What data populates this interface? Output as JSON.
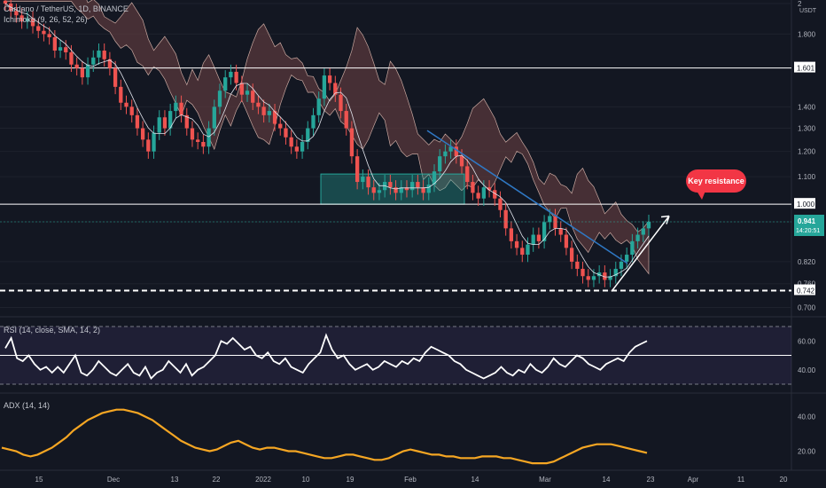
{
  "legend": {
    "symbol": "Cardano / TetherUS, 1D, BINANCE",
    "ichimoku": "Ichimoku (9, 26, 52, 26)",
    "rsi": "RSI (14, close, SMA, 14, 2)",
    "adx": "ADX (14, 14)"
  },
  "currency": "USDT",
  "annotation": {
    "key_resistance": "Key resistance"
  },
  "price_badge": {
    "price": "0.941",
    "countdown": "14:20:51"
  },
  "colors": {
    "background": "#131722",
    "up": "#26a69a",
    "down": "#ef5350",
    "cloud": "#5d3a3d",
    "adx": "#f5a623",
    "trendline": "#2f78c4",
    "annotation": "#f23645",
    "zone": "#26a69a"
  },
  "chart_data": [
    {
      "type": "candlestick",
      "scale": "log",
      "ylim": [
        0.68,
        2.0
      ],
      "y_ticks": [
        "2",
        "1.800",
        "1.601",
        "1.400",
        "1.300",
        "1.200",
        "1.100",
        "1.000",
        "0.941",
        "0.820",
        "0.760",
        "0.742",
        "0.700"
      ],
      "x_ticks": [
        "15",
        "Dec",
        "13",
        "22",
        "2022",
        "10",
        "19",
        "Feb",
        "14",
        "Mar",
        "14",
        "23",
        "Apr",
        "11",
        "20"
      ],
      "horizontal_levels": [
        1.601,
        1.0,
        0.742
      ],
      "last_price": 0.941,
      "series": [
        {
          "name": "ADAUSDT",
          "values": [
            2.0,
            1.95,
            1.92,
            1.88,
            1.9,
            1.85,
            1.82,
            1.8,
            1.78,
            1.7,
            1.72,
            1.69,
            1.62,
            1.6,
            1.55,
            1.62,
            1.66,
            1.7,
            1.65,
            1.6,
            1.5,
            1.42,
            1.4,
            1.36,
            1.3,
            1.25,
            1.2,
            1.28,
            1.35,
            1.3,
            1.38,
            1.42,
            1.36,
            1.3,
            1.25,
            1.24,
            1.22,
            1.3,
            1.4,
            1.48,
            1.55,
            1.58,
            1.52,
            1.46,
            1.48,
            1.42,
            1.4,
            1.36,
            1.38,
            1.32,
            1.3,
            1.26,
            1.22,
            1.2,
            1.24,
            1.3,
            1.36,
            1.44,
            1.56,
            1.52,
            1.46,
            1.38,
            1.3,
            1.18,
            1.08,
            1.1,
            1.06,
            1.04,
            1.05,
            1.08,
            1.06,
            1.04,
            1.06,
            1.05,
            1.08,
            1.06,
            1.04,
            1.07,
            1.12,
            1.18,
            1.2,
            1.22,
            1.18,
            1.14,
            1.08,
            1.04,
            1.02,
            1.06,
            1.05,
            1.02,
            0.98,
            0.92,
            0.88,
            0.86,
            0.84,
            0.87,
            0.9,
            0.88,
            0.94,
            0.96,
            0.92,
            0.9,
            0.86,
            0.82,
            0.8,
            0.78,
            0.77,
            0.78,
            0.79,
            0.77,
            0.78,
            0.8,
            0.82,
            0.84,
            0.88,
            0.9,
            0.92,
            0.941
          ]
        }
      ]
    },
    {
      "type": "line",
      "title": "RSI (14, close, SMA, 14, 2)",
      "y_ticks": [
        "60.00",
        "40.00"
      ],
      "levels": [
        70,
        50,
        30
      ],
      "series": [
        {
          "name": "RSI",
          "values": [
            55,
            62,
            48,
            46,
            50,
            44,
            40,
            42,
            38,
            42,
            38,
            44,
            50,
            38,
            36,
            40,
            46,
            42,
            38,
            36,
            40,
            44,
            38,
            36,
            42,
            34,
            38,
            40,
            46,
            42,
            38,
            44,
            36,
            40,
            42,
            46,
            50,
            60,
            58,
            62,
            58,
            54,
            56,
            50,
            48,
            52,
            46,
            44,
            48,
            42,
            40,
            38,
            44,
            48,
            52,
            64,
            54,
            48,
            50,
            44,
            40,
            42,
            44,
            40,
            42,
            46,
            44,
            42,
            46,
            44,
            48,
            46,
            52,
            56,
            54,
            52,
            50,
            46,
            44,
            40,
            38,
            36,
            34,
            36,
            38,
            42,
            38,
            36,
            40,
            38,
            44,
            40,
            38,
            42,
            48,
            44,
            42,
            46,
            50,
            48,
            44,
            42,
            40,
            44,
            46,
            48,
            46,
            52,
            56,
            58,
            60
          ]
        }
      ]
    },
    {
      "type": "line",
      "title": "ADX (14, 14)",
      "y_ticks": [
        "40.00",
        "20.00"
      ],
      "series": [
        {
          "name": "ADX",
          "values": [
            22,
            21,
            20,
            18,
            17,
            18,
            20,
            22,
            25,
            28,
            32,
            35,
            38,
            40,
            42,
            43,
            44,
            44,
            43,
            42,
            40,
            38,
            35,
            32,
            29,
            26,
            24,
            22,
            21,
            20,
            21,
            23,
            25,
            26,
            24,
            22,
            21,
            22,
            22,
            21,
            20,
            20,
            19,
            18,
            17,
            16,
            16,
            17,
            18,
            18,
            17,
            16,
            15,
            15,
            16,
            18,
            20,
            21,
            20,
            19,
            18,
            18,
            17,
            17,
            16,
            16,
            16,
            17,
            17,
            17,
            16,
            16,
            15,
            14,
            13,
            13,
            13,
            14,
            16,
            18,
            20,
            22,
            23,
            24,
            24,
            24,
            23,
            22,
            21,
            20,
            19
          ]
        }
      ]
    }
  ]
}
